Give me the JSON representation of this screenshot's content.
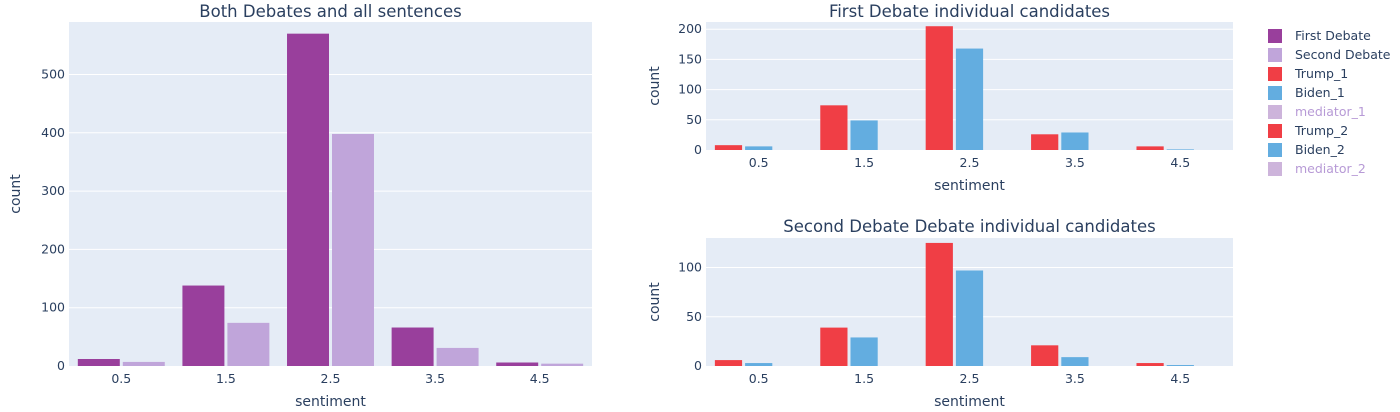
{
  "chart_data": [
    {
      "type": "bar",
      "title": "Both Debates and all sentences",
      "xlabel": "sentiment",
      "ylabel": "count",
      "categories": [
        "0.5",
        "1.5",
        "2.5",
        "3.5",
        "4.5"
      ],
      "ylim": [
        0,
        590
      ],
      "yticks": [
        0,
        100,
        200,
        300,
        400,
        500
      ],
      "grid": true,
      "series": [
        {
          "name": "First Debate",
          "color": "#993f9c",
          "values": [
            12,
            138,
            570,
            66,
            6
          ]
        },
        {
          "name": "Second Debate",
          "color": "#c0a5da",
          "values": [
            7,
            74,
            398,
            31,
            4
          ]
        }
      ]
    },
    {
      "type": "bar",
      "title": "First Debate individual candidates",
      "xlabel": "sentiment",
      "ylabel": "count",
      "categories": [
        "0.5",
        "1.5",
        "2.5",
        "3.5",
        "4.5"
      ],
      "ylim": [
        0,
        212
      ],
      "yticks": [
        0,
        50,
        100,
        150,
        200
      ],
      "grid": true,
      "series": [
        {
          "name": "Trump_1",
          "color": "#f03e45",
          "values": [
            8,
            74,
            205,
            26,
            6
          ]
        },
        {
          "name": "Biden_1",
          "color": "#63ade0",
          "values": [
            6,
            49,
            168,
            29,
            1
          ]
        },
        {
          "name": "mediator_1",
          "color": "#cdb4db",
          "values": [
            0,
            0,
            0,
            0,
            0
          ]
        }
      ]
    },
    {
      "type": "bar",
      "title": "Second Debate Debate individual candidates",
      "xlabel": "sentiment",
      "ylabel": "count",
      "categories": [
        "0.5",
        "1.5",
        "2.5",
        "3.5",
        "4.5"
      ],
      "ylim": [
        0,
        130
      ],
      "yticks": [
        0,
        50,
        100
      ],
      "grid": true,
      "series": [
        {
          "name": "Trump_2",
          "color": "#f03e45",
          "values": [
            6,
            39,
            125,
            21,
            3
          ]
        },
        {
          "name": "Biden_2",
          "color": "#63ade0",
          "values": [
            3,
            29,
            97,
            9,
            1
          ]
        },
        {
          "name": "mediator_2",
          "color": "#cdb4db",
          "values": [
            0,
            0,
            0,
            0,
            0
          ]
        }
      ]
    }
  ],
  "legend": {
    "placement": "top-right",
    "items": [
      {
        "label": "First Debate",
        "color": "#993f9c",
        "muted": false
      },
      {
        "label": "Second Debate",
        "color": "#c0a5da",
        "muted": false
      },
      {
        "label": "Trump_1",
        "color": "#f03e45",
        "muted": false
      },
      {
        "label": "Biden_1",
        "color": "#63ade0",
        "muted": false
      },
      {
        "label": "mediator_1",
        "color": "#cdb4db",
        "muted": true
      },
      {
        "label": "Trump_2",
        "color": "#f03e45",
        "muted": false
      },
      {
        "label": "Biden_2",
        "color": "#63ade0",
        "muted": false
      },
      {
        "label": "mediator_2",
        "color": "#cdb4db",
        "muted": true
      }
    ]
  }
}
